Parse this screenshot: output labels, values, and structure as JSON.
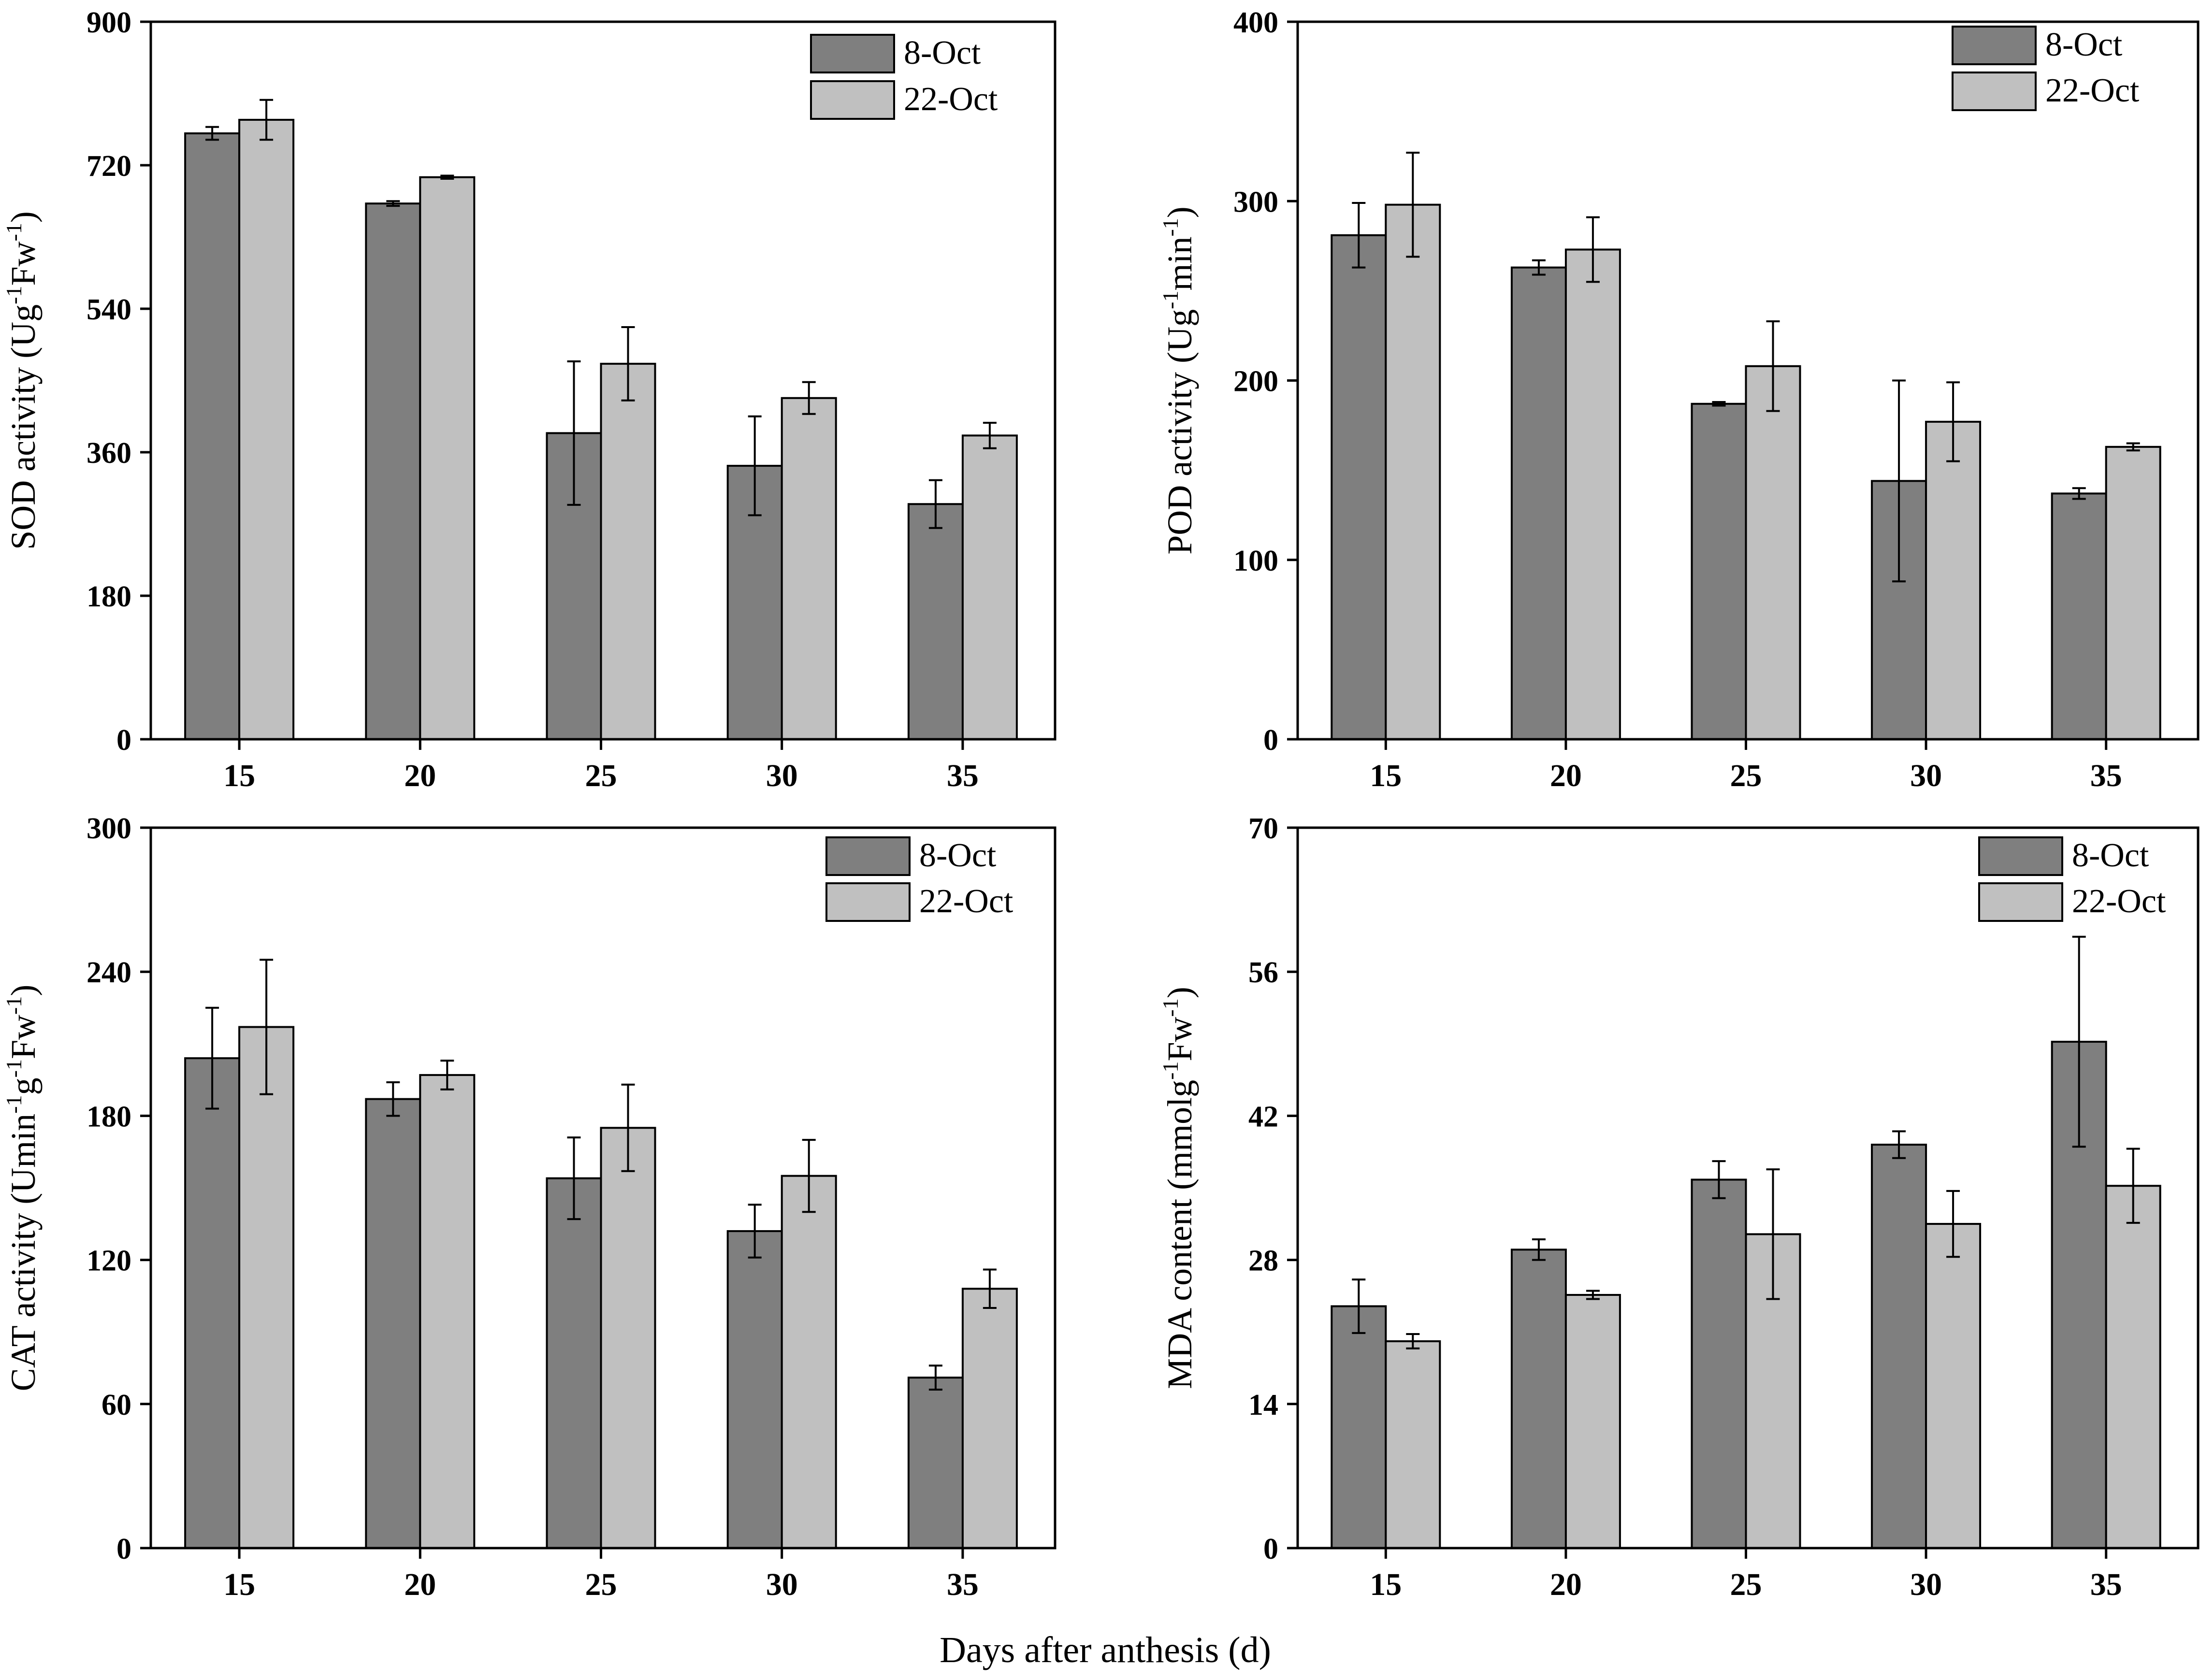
{
  "figure": {
    "xlabel": "Days after anthesis (d)"
  },
  "colors": {
    "series_1": "#7f7f7f",
    "series_2": "#c0c0c0",
    "edge": "#000000"
  },
  "chart_data": [
    {
      "id": "sod",
      "type": "bar",
      "categories": [
        "15",
        "20",
        "25",
        "30",
        "35"
      ],
      "ylim": [
        0,
        900
      ],
      "yticks": [
        0,
        180,
        360,
        540,
        720,
        900
      ],
      "ylabel_parts": [
        {
          "text": "SOD activity (Ug"
        },
        {
          "text": "-1",
          "sup": true
        },
        {
          "text": "Fw"
        },
        {
          "text": "-1",
          "sup": true
        },
        {
          "text": ")"
        }
      ],
      "series": [
        {
          "name": "8-Oct",
          "values": [
            760,
            672,
            384,
            343,
            295
          ],
          "errors": [
            8,
            3,
            90,
            62,
            30
          ]
        },
        {
          "name": "22-Oct",
          "values": [
            777,
            705,
            471,
            428,
            381
          ],
          "errors": [
            25,
            2,
            46,
            20,
            16
          ]
        }
      ]
    },
    {
      "id": "pod",
      "type": "bar",
      "categories": [
        "15",
        "20",
        "25",
        "30",
        "35"
      ],
      "ylim": [
        0,
        400
      ],
      "yticks": [
        0,
        100,
        200,
        300,
        400
      ],
      "ylabel_parts": [
        {
          "text": "POD activity (Ug"
        },
        {
          "text": "-1",
          "sup": true
        },
        {
          "text": "min"
        },
        {
          "text": "-1",
          "sup": true
        },
        {
          "text": ")"
        }
      ],
      "series": [
        {
          "name": "8-Oct",
          "values": [
            281,
            263,
            187,
            144,
            137
          ],
          "errors": [
            18,
            4,
            1,
            56,
            3
          ]
        },
        {
          "name": "22-Oct",
          "values": [
            298,
            273,
            208,
            177,
            163
          ],
          "errors": [
            29,
            18,
            25,
            22,
            2
          ]
        }
      ]
    },
    {
      "id": "cat",
      "type": "bar",
      "categories": [
        "15",
        "20",
        "25",
        "30",
        "35"
      ],
      "ylim": [
        0,
        300
      ],
      "yticks": [
        0,
        60,
        120,
        180,
        240,
        300
      ],
      "ylabel_parts": [
        {
          "text": "CAT activity (Umin"
        },
        {
          "text": "-1",
          "sup": true
        },
        {
          "text": "g"
        },
        {
          "text": "-1",
          "sup": true
        },
        {
          "text": "Fw"
        },
        {
          "text": "-1",
          "sup": true
        },
        {
          "text": ")"
        }
      ],
      "series": [
        {
          "name": "8-Oct",
          "values": [
            204,
            187,
            154,
            132,
            71
          ],
          "errors": [
            21,
            7,
            17,
            11,
            5
          ]
        },
        {
          "name": "22-Oct",
          "values": [
            217,
            197,
            175,
            155,
            108
          ],
          "errors": [
            28,
            6,
            18,
            15,
            8
          ]
        }
      ]
    },
    {
      "id": "mda",
      "type": "bar",
      "categories": [
        "15",
        "20",
        "25",
        "30",
        "35"
      ],
      "ylim": [
        0,
        70
      ],
      "yticks": [
        0,
        14,
        28,
        42,
        56,
        70
      ],
      "ylabel_parts": [
        {
          "text": "MDA content (mmolg"
        },
        {
          "text": "-1",
          "sup": true
        },
        {
          "text": "Fw"
        },
        {
          "text": "-1",
          "sup": true
        },
        {
          "text": ")"
        }
      ],
      "series": [
        {
          "name": "8-Oct",
          "values": [
            23.5,
            29,
            35.8,
            39.2,
            49.2
          ],
          "errors": [
            2.6,
            1,
            1.8,
            1.3,
            10.2
          ]
        },
        {
          "name": "22-Oct",
          "values": [
            20.1,
            24.6,
            30.5,
            31.5,
            35.2
          ],
          "errors": [
            0.7,
            0.4,
            6.3,
            3.2,
            3.6
          ]
        }
      ]
    }
  ]
}
